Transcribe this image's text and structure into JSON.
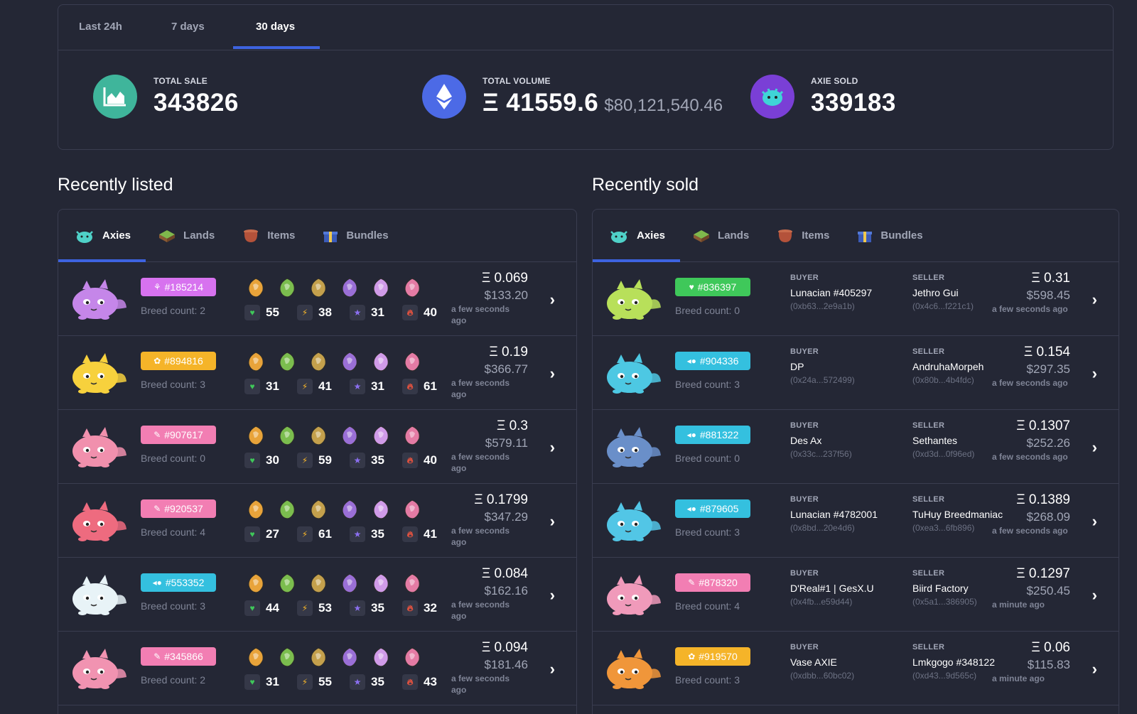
{
  "period_tabs": [
    {
      "label": "Last 24h"
    },
    {
      "label": "7 days"
    },
    {
      "label": "30 days"
    }
  ],
  "stats": {
    "total_sale": {
      "label": "TOTAL SALE",
      "value": "343826"
    },
    "total_volume": {
      "label": "TOTAL VOLUME",
      "value": "Ξ 41559.6",
      "usd": "$80,121,540.46"
    },
    "axie_sold": {
      "label": "AXIE SOLD",
      "value": "339183"
    }
  },
  "colors": {
    "accent": "#3d63e0",
    "plant": "#3fc85a",
    "aquatic": "#34c0df",
    "beast": "#f5b429",
    "bird": "#f27eb3",
    "bug": "#e55f71",
    "reptile": "#d772ef"
  },
  "recently_listed": {
    "title": "Recently listed",
    "tabs": [
      "Axies",
      "Lands",
      "Items",
      "Bundles"
    ],
    "rows": [
      {
        "id": "#185214",
        "cls": "reptile",
        "cls_icon": "⚘",
        "color": "#d772ef",
        "body": "#c586e9",
        "breed": "Breed count: 2",
        "hp": "55",
        "speed": "38",
        "skill": "31",
        "morale": "40",
        "eth": "Ξ 0.069",
        "usd": "$133.20",
        "time": "a few seconds ago"
      },
      {
        "id": "#894816",
        "cls": "beast",
        "cls_icon": "✿",
        "color": "#f5b429",
        "body": "#f7d13d",
        "breed": "Breed count: 3",
        "hp": "31",
        "speed": "41",
        "skill": "31",
        "morale": "61",
        "eth": "Ξ 0.19",
        "usd": "$366.77",
        "time": "a few seconds ago"
      },
      {
        "id": "#907617",
        "cls": "bird",
        "cls_icon": "✎",
        "color": "#f27eb3",
        "body": "#f190ad",
        "breed": "Breed count: 0",
        "hp": "30",
        "speed": "59",
        "skill": "35",
        "morale": "40",
        "eth": "Ξ 0.3",
        "usd": "$579.11",
        "time": "a few seconds ago"
      },
      {
        "id": "#920537",
        "cls": "bird",
        "cls_icon": "✎",
        "color": "#f27eb3",
        "body": "#ee6b7f",
        "breed": "Breed count: 4",
        "hp": "27",
        "speed": "61",
        "skill": "35",
        "morale": "41",
        "eth": "Ξ 0.1799",
        "usd": "$347.29",
        "time": "a few seconds ago"
      },
      {
        "id": "#553352",
        "cls": "aquatic",
        "cls_icon": "◂●",
        "color": "#34c0df",
        "body": "#e8f3f7",
        "breed": "Breed count: 3",
        "hp": "44",
        "speed": "53",
        "skill": "35",
        "morale": "32",
        "eth": "Ξ 0.084",
        "usd": "$162.16",
        "time": "a few seconds ago"
      },
      {
        "id": "#345866",
        "cls": "bird",
        "cls_icon": "✎",
        "color": "#f27eb3",
        "body": "#f193b1",
        "breed": "Breed count: 2",
        "hp": "31",
        "speed": "55",
        "skill": "35",
        "morale": "43",
        "eth": "Ξ 0.094",
        "usd": "$181.46",
        "time": "a few seconds ago"
      }
    ]
  },
  "recently_sold": {
    "title": "Recently sold",
    "tabs": [
      "Axies",
      "Lands",
      "Items",
      "Bundles"
    ],
    "buyer_label": "BUYER",
    "seller_label": "SELLER",
    "rows": [
      {
        "id": "#836397",
        "cls": "plant",
        "cls_icon": "♥",
        "color": "#3fc85a",
        "body": "#b8e05a",
        "breed": "Breed count: 0",
        "buyer": "Lunacian #405297",
        "buyer_addr": "(0xb63...2e9a1b)",
        "seller": "Jethro Gui",
        "seller_addr": "(0x4c6...f221c1)",
        "eth": "Ξ 0.31",
        "usd": "$598.45",
        "time": "a few seconds ago"
      },
      {
        "id": "#904336",
        "cls": "aquatic",
        "cls_icon": "◂●",
        "color": "#34c0df",
        "body": "#4dc8e3",
        "breed": "Breed count: 3",
        "buyer": "DP",
        "buyer_addr": "(0x24a...572499)",
        "seller": "AndruhaMorpeh",
        "seller_addr": "(0x80b...4b4fdc)",
        "eth": "Ξ 0.154",
        "usd": "$297.35",
        "time": "a few seconds ago"
      },
      {
        "id": "#881322",
        "cls": "aquatic",
        "cls_icon": "◂●",
        "color": "#34c0df",
        "body": "#6a8fc9",
        "breed": "Breed count: 0",
        "buyer": "Des Ax",
        "buyer_addr": "(0x33c...237f56)",
        "seller": "Sethantes",
        "seller_addr": "(0xd3d...0f96ed)",
        "eth": "Ξ 0.1307",
        "usd": "$252.26",
        "time": "a few seconds ago"
      },
      {
        "id": "#879605",
        "cls": "aquatic",
        "cls_icon": "◂●",
        "color": "#34c0df",
        "body": "#52c6e6",
        "breed": "Breed count: 3",
        "buyer": "Lunacian #4782001",
        "buyer_addr": "(0x8bd...20e4d6)",
        "seller": "TuHuy Breedmaniac",
        "seller_addr": "(0xea3...6fb896)",
        "eth": "Ξ 0.1389",
        "usd": "$268.09",
        "time": "a few seconds ago"
      },
      {
        "id": "#878320",
        "cls": "bird",
        "cls_icon": "✎",
        "color": "#f27eb3",
        "body": "#f09aba",
        "breed": "Breed count: 4",
        "buyer": "D'Real#1 | GesX.U",
        "buyer_addr": "(0x4fb...e59d44)",
        "seller": "Biird Factory",
        "seller_addr": "(0x5a1...386905)",
        "eth": "Ξ 0.1297",
        "usd": "$250.45",
        "time": "a minute ago"
      },
      {
        "id": "#919570",
        "cls": "beast",
        "cls_icon": "✿",
        "color": "#f5b429",
        "body": "#f0963a",
        "breed": "Breed count: 3",
        "buyer": "Vase AXIE",
        "buyer_addr": "(0xdbb...60bc02)",
        "seller": "Lmkgogo #348122",
        "seller_addr": "(0xd43...9d565c)",
        "eth": "Ξ 0.06",
        "usd": "$115.83",
        "time": "a minute ago"
      }
    ]
  }
}
